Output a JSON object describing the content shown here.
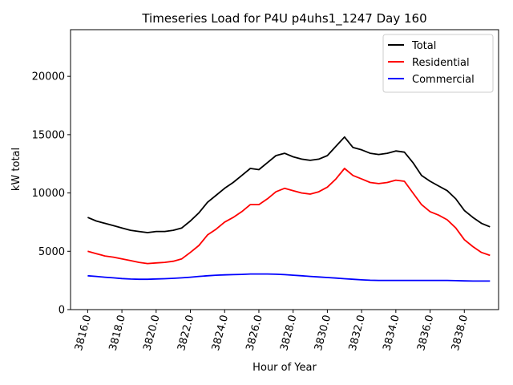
{
  "chart_data": {
    "type": "line",
    "title": "Timeseries Load for P4U p4uhs1_1247  Day 160",
    "xlabel": "Hour of Year",
    "ylabel": "kW total",
    "xlim": [
      3815.0,
      3840.0
    ],
    "ylim": [
      0,
      24000
    ],
    "xticks": [
      3816,
      3818,
      3820,
      3822,
      3824,
      3826,
      3828,
      3830,
      3832,
      3834,
      3836,
      3838
    ],
    "xtick_labels": [
      "3816.0",
      "3818.0",
      "3820.0",
      "3822.0",
      "3824.0",
      "3826.0",
      "3828.0",
      "3830.0",
      "3832.0",
      "3834.0",
      "3836.0",
      "3838.0"
    ],
    "yticks": [
      0,
      5000,
      10000,
      15000,
      20000
    ],
    "ytick_labels": [
      "0",
      "5000",
      "10000",
      "15000",
      "20000"
    ],
    "legend_position": "top-right",
    "grid": false,
    "x": [
      3816.0,
      3816.5,
      3817.0,
      3817.5,
      3818.0,
      3818.5,
      3819.0,
      3819.5,
      3820.0,
      3820.5,
      3821.0,
      3821.5,
      3822.0,
      3822.5,
      3823.0,
      3823.5,
      3824.0,
      3824.5,
      3825.0,
      3825.5,
      3826.0,
      3826.5,
      3827.0,
      3827.5,
      3828.0,
      3828.5,
      3829.0,
      3829.5,
      3830.0,
      3830.5,
      3831.0,
      3831.5,
      3832.0,
      3832.5,
      3833.0,
      3833.5,
      3834.0,
      3834.5,
      3835.0,
      3835.5,
      3836.0,
      3836.5,
      3837.0,
      3837.5,
      3838.0,
      3838.5,
      3839.0,
      3839.5
    ],
    "series": [
      {
        "name": "Total",
        "color": "#000000",
        "values": [
          7900,
          7600,
          7400,
          7200,
          7000,
          6800,
          6700,
          6600,
          6700,
          6700,
          6800,
          7000,
          7600,
          8300,
          9200,
          9800,
          10400,
          10900,
          11500,
          12100,
          12000,
          12600,
          13200,
          13400,
          13100,
          12900,
          12800,
          12900,
          13200,
          14000,
          14800,
          13900,
          13700,
          13400,
          13300,
          13400,
          13600,
          13500,
          12600,
          11500,
          11000,
          10600,
          10200,
          9500,
          8500,
          7900,
          7400,
          7100
        ]
      },
      {
        "name": "Residential",
        "color": "#ff0000",
        "values": [
          5000,
          4800,
          4600,
          4500,
          4350,
          4200,
          4050,
          3950,
          4000,
          4050,
          4150,
          4350,
          4900,
          5500,
          6400,
          6900,
          7500,
          7900,
          8400,
          9000,
          9000,
          9500,
          10100,
          10400,
          10200,
          10000,
          9900,
          10100,
          10500,
          11200,
          12100,
          11500,
          11200,
          10900,
          10800,
          10900,
          11100,
          11000,
          10000,
          9000,
          8400,
          8100,
          7700,
          7000,
          6000,
          5400,
          4900,
          4650
        ]
      },
      {
        "name": "Commercial",
        "color": "#0000ff",
        "values": [
          2900,
          2850,
          2780,
          2720,
          2660,
          2620,
          2600,
          2600,
          2630,
          2650,
          2680,
          2720,
          2780,
          2850,
          2900,
          2950,
          2980,
          3000,
          3020,
          3050,
          3050,
          3050,
          3030,
          3000,
          2950,
          2900,
          2850,
          2800,
          2750,
          2700,
          2650,
          2600,
          2550,
          2520,
          2500,
          2500,
          2500,
          2500,
          2500,
          2500,
          2500,
          2500,
          2500,
          2480,
          2460,
          2450,
          2450,
          2450
        ]
      }
    ]
  }
}
